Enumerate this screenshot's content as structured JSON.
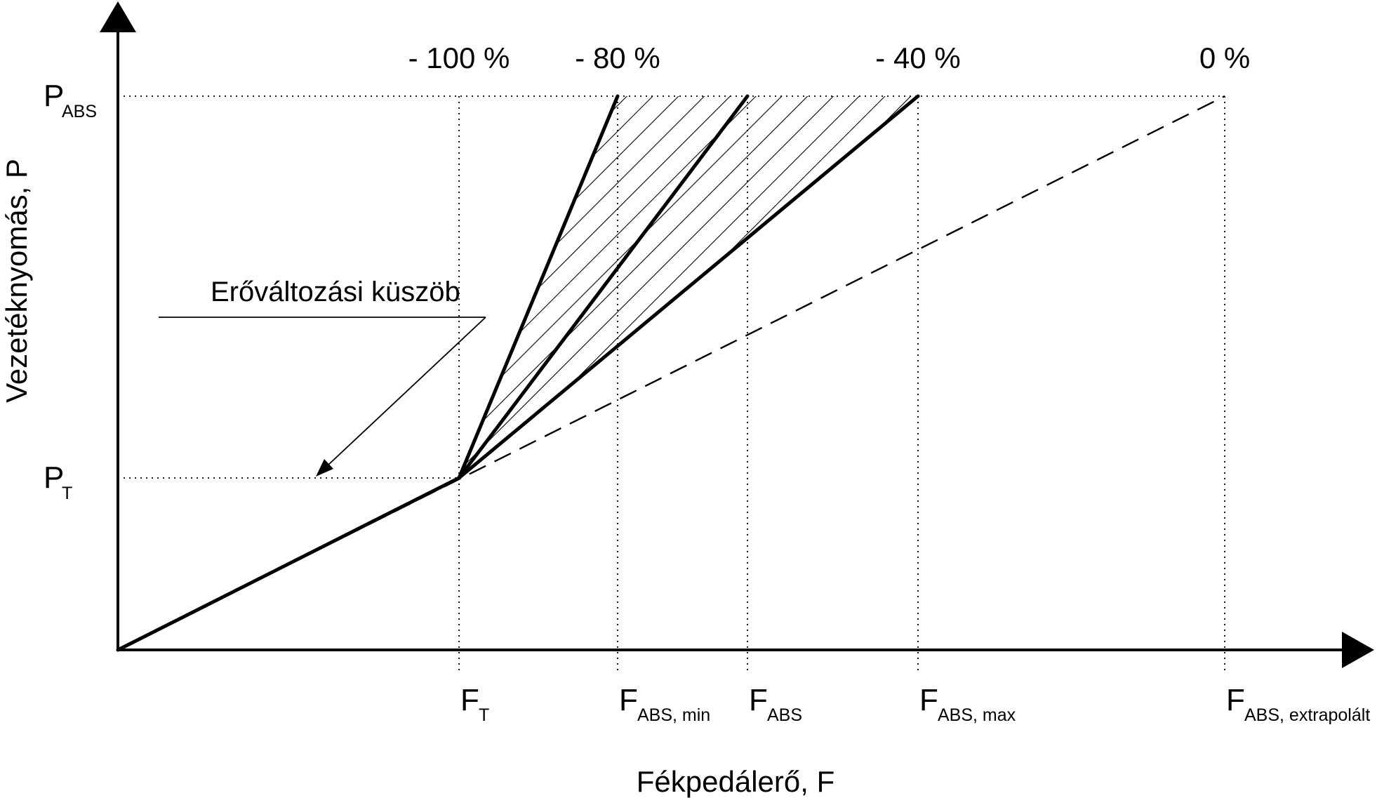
{
  "chart_data": {
    "type": "line",
    "title": "",
    "xlabel": "Fékpedálerő, F",
    "ylabel": "Vezetéknyomás, P",
    "x_ticks": [
      {
        "key": "FT",
        "main": "F",
        "sub": "T"
      },
      {
        "key": "FABSmin",
        "main": "F",
        "sub": "ABS, min"
      },
      {
        "key": "FABS",
        "main": "F",
        "sub": "ABS"
      },
      {
        "key": "FABSmax",
        "main": "F",
        "sub": "ABS, max"
      },
      {
        "key": "FABSext",
        "main": "F",
        "sub": "ABS, extrapolált"
      }
    ],
    "y_ticks": [
      {
        "key": "PT",
        "main": "P",
        "sub": "T"
      },
      {
        "key": "PABS",
        "main": "P",
        "sub": "ABS"
      }
    ],
    "top_percent_labels": [
      {
        "at": "FT",
        "text": "- 100 %"
      },
      {
        "at": "FABSmin",
        "text": "- 80 %"
      },
      {
        "at": "FABSmax",
        "text": "- 40 %"
      },
      {
        "at": "FABSext",
        "text": "0 %"
      }
    ],
    "series": [
      {
        "style": "solid-thick",
        "points": [
          [
            "0",
            "0"
          ],
          [
            "FT",
            "PT"
          ]
        ]
      },
      {
        "style": "solid-thick",
        "points": [
          [
            "FT",
            "PT"
          ],
          [
            "FABSmin",
            "PABS"
          ]
        ]
      },
      {
        "style": "solid-thick",
        "points": [
          [
            "FT",
            "PT"
          ],
          [
            "FABS",
            "PABS"
          ]
        ]
      },
      {
        "style": "solid-thick",
        "points": [
          [
            "FT",
            "PT"
          ],
          [
            "FABSmax",
            "PABS"
          ]
        ]
      },
      {
        "style": "dashed",
        "points": [
          [
            "0",
            "0"
          ],
          [
            "FABSext",
            "PABS"
          ]
        ]
      }
    ],
    "hatched_region": [
      "FT-PT",
      "FABSmin-PABS",
      "FABSmax-PABS"
    ],
    "annotation": {
      "text": "Erőváltozási küszöb",
      "points_to": "PT"
    },
    "grid": false
  }
}
